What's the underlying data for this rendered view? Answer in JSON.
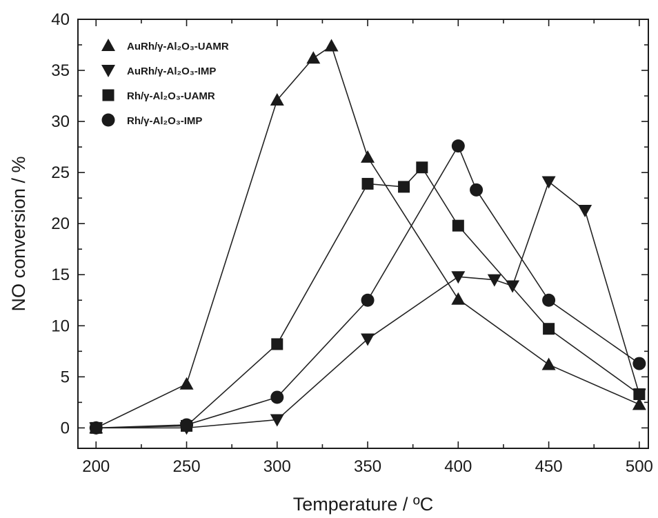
{
  "chart_data": {
    "type": "line",
    "xlabel": "Temperature / ºC",
    "ylabel": "NO conversion / %",
    "xlim": [
      190,
      505
    ],
    "ylim": [
      -2,
      40
    ],
    "xticks": [
      200,
      250,
      300,
      350,
      400,
      450,
      500
    ],
    "yticks": [
      0,
      5,
      10,
      15,
      20,
      25,
      30,
      35,
      40
    ],
    "legend_position": "top-left",
    "grid": false,
    "series": [
      {
        "name": "AuRh/γ-Al₂O₃-UAMR",
        "marker": "triangle-up",
        "x": [
          200,
          250,
          300,
          320,
          330,
          350,
          400,
          450,
          500
        ],
        "y": [
          0,
          4.3,
          32.1,
          36.2,
          37.4,
          26.5,
          12.6,
          6.2,
          2.3
        ]
      },
      {
        "name": "AuRh/γ-Al₂O₃-IMP",
        "marker": "triangle-down",
        "x": [
          200,
          250,
          300,
          350,
          400,
          420,
          430,
          450,
          470,
          500
        ],
        "y": [
          0,
          0,
          0.8,
          8.7,
          14.8,
          14.5,
          13.9,
          24.1,
          21.3,
          3.3
        ]
      },
      {
        "name": "Rh/γ-Al₂O₃-UAMR",
        "marker": "square",
        "x": [
          200,
          250,
          300,
          350,
          370,
          380,
          400,
          450,
          500
        ],
        "y": [
          0,
          0.2,
          8.2,
          23.9,
          23.6,
          25.5,
          19.8,
          9.7,
          3.3
        ]
      },
      {
        "name": "Rh/γ-Al₂O₃-IMP",
        "marker": "circle",
        "x": [
          200,
          250,
          300,
          350,
          400,
          410,
          450,
          500
        ],
        "y": [
          0,
          0.3,
          3.0,
          12.5,
          27.6,
          23.3,
          12.5,
          6.3
        ]
      }
    ]
  }
}
